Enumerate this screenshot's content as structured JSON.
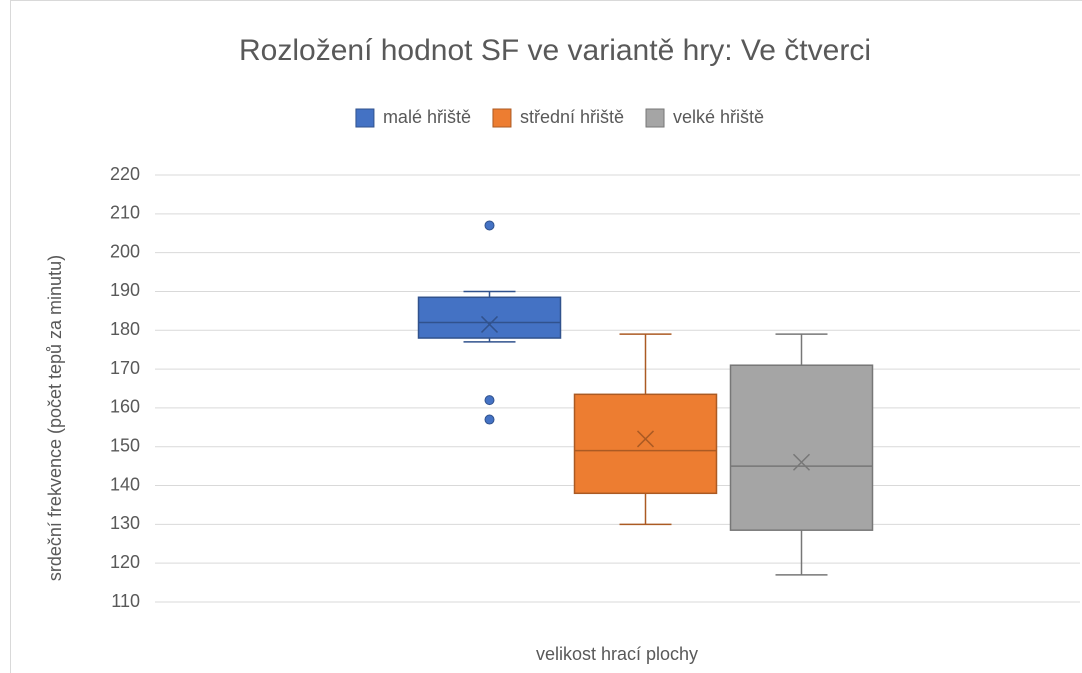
{
  "chart_data": {
    "type": "box",
    "title": "Rozložení hodnot SF ve variantě hry: Ve čtverci",
    "xlabel": "velikost hrací plochy",
    "ylabel": "srdeční frekvence (počet tepů za minutu)",
    "ylim": [
      110,
      220
    ],
    "yticks": [
      110,
      120,
      130,
      140,
      150,
      160,
      170,
      180,
      190,
      200,
      210,
      220
    ],
    "grid": true,
    "legend": "top",
    "series": [
      {
        "name": "malé hřiště",
        "color": "#4472c4",
        "min": 177,
        "q1": 178,
        "median": 182,
        "q3": 188.5,
        "max": 190,
        "mean": 181.5,
        "outliers": [
          207,
          162,
          157
        ]
      },
      {
        "name": "střední hřiště",
        "color": "#ed7d31",
        "min": 130,
        "q1": 138,
        "median": 149,
        "q3": 163.5,
        "max": 179,
        "mean": 152,
        "outliers": []
      },
      {
        "name": "velké hřiště",
        "color": "#a5a5a5",
        "min": 117,
        "q1": 128.5,
        "median": 145,
        "q3": 171,
        "max": 179,
        "mean": 146,
        "outliers": []
      }
    ]
  }
}
